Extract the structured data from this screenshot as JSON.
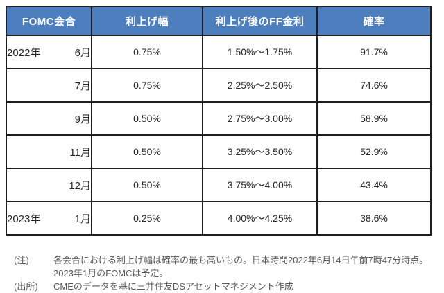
{
  "chart_data": {
    "type": "table",
    "columns": [
      "FOMC会合",
      "利上げ幅",
      "利上げ後のFF金利",
      "確率"
    ],
    "rows": [
      {
        "year": "2022年",
        "month": "6月",
        "hike": "0.75%",
        "ff_rate": "1.50%〜1.75%",
        "probability": "91.7%"
      },
      {
        "year": "",
        "month": "7月",
        "hike": "0.75%",
        "ff_rate": "2.25%〜2.50%",
        "probability": "74.6%"
      },
      {
        "year": "",
        "month": "9月",
        "hike": "0.50%",
        "ff_rate": "2.75%〜3.00%",
        "probability": "58.9%"
      },
      {
        "year": "",
        "month": "11月",
        "hike": "0.50%",
        "ff_rate": "3.25%〜3.50%",
        "probability": "52.9%"
      },
      {
        "year": "",
        "month": "12月",
        "hike": "0.50%",
        "ff_rate": "3.75%〜4.00%",
        "probability": "43.4%"
      },
      {
        "year": "2023年",
        "month": "1月",
        "hike": "0.25%",
        "ff_rate": "4.00%〜4.25%",
        "probability": "38.6%"
      }
    ],
    "grid": "all-borders",
    "legend_position": "none"
  },
  "notes": [
    {
      "label": "(注)",
      "text": "各会合における利上げ幅は確率の最も高いもの。日本時間2022年6月14日午前7時47分時点。2023年1月のFOMCは予定。"
    },
    {
      "label": "(出所)",
      "text": "CMEのデータを基に三井住友DSアセットマネジメント作成"
    }
  ],
  "colors": {
    "header_bg": "#4d7ebe",
    "header_text": "#ffffff",
    "border": "#1f1f1f",
    "body_text": "#262626",
    "note_text": "#595959",
    "background": "#ffffff"
  }
}
